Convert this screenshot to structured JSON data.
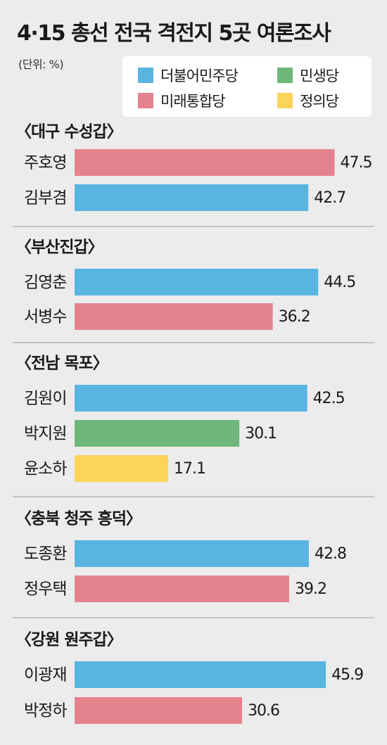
{
  "title": "4·15 총선 전국 격전지 5곳 여론조사",
  "unit_label": "(단위: %)",
  "legend": [
    {
      "party": "더불어민주당",
      "color": "#5ab4e0"
    },
    {
      "party": "민생당",
      "color": "#6db77a"
    },
    {
      "party": "미래통합당",
      "color": "#e4838e"
    },
    {
      "party": "정의당",
      "color": "#fcd45a"
    }
  ],
  "chart_data": {
    "type": "bar",
    "orientation": "horizontal",
    "unit": "%",
    "groups": [
      {
        "region": "〈대구 수성갑〉",
        "bars": [
          {
            "candidate": "주호영",
            "party": "미래통합당",
            "value": 47.5
          },
          {
            "candidate": "김부겸",
            "party": "더불어민주당",
            "value": 42.7
          }
        ]
      },
      {
        "region": "〈부산진갑〉",
        "bars": [
          {
            "candidate": "김영춘",
            "party": "더불어민주당",
            "value": 44.5
          },
          {
            "candidate": "서병수",
            "party": "미래통합당",
            "value": 36.2
          }
        ]
      },
      {
        "region": "〈전남 목포〉",
        "bars": [
          {
            "candidate": "김원이",
            "party": "더불어민주당",
            "value": 42.5
          },
          {
            "candidate": "박지원",
            "party": "민생당",
            "value": 30.1
          },
          {
            "candidate": "윤소하",
            "party": "정의당",
            "value": 17.1
          }
        ]
      },
      {
        "region": "〈충북 청주 흥덕〉",
        "bars": [
          {
            "candidate": "도종환",
            "party": "더불어민주당",
            "value": 42.8
          },
          {
            "candidate": "정우택",
            "party": "미래통합당",
            "value": 39.2
          }
        ]
      },
      {
        "region": "〈강원 원주갑〉",
        "bars": [
          {
            "candidate": "이광재",
            "party": "더불어민주당",
            "value": 45.9
          },
          {
            "candidate": "박정하",
            "party": "미래통합당",
            "value": 30.6
          }
        ]
      }
    ]
  }
}
